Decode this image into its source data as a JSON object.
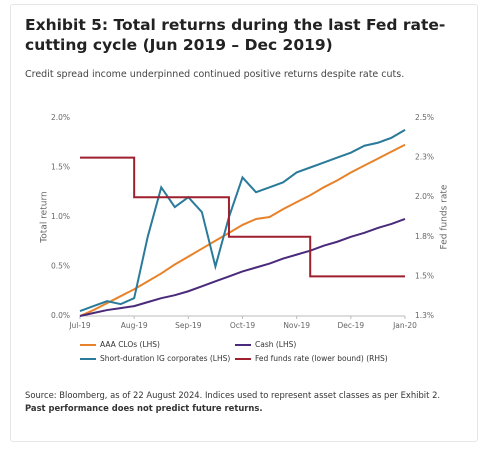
{
  "chart_data": {
    "type": "line",
    "title": "Exhibit 5: Total returns during the last Fed rate-cutting cycle (Jun 2019 – Dec 2019)",
    "subtitle": "Credit spread income underpinned continued positive returns despite rate cuts.",
    "ylabel": "Total return",
    "y2label": "Fed funds rate",
    "categories": [
      "Jul-19",
      null,
      null,
      null,
      "Aug-19",
      null,
      null,
      null,
      "Sep-19",
      null,
      null,
      null,
      "Oct-19",
      null,
      null,
      null,
      "Nov-19",
      null,
      null,
      null,
      "Dec-19",
      null,
      null,
      null,
      "Jan-20"
    ],
    "ylim": [
      0,
      2
    ],
    "yticks": [
      {
        "value": 0,
        "label": "0.0%"
      },
      {
        "value": 0.5,
        "label": "0.5%"
      },
      {
        "value": 1,
        "label": "1.0%"
      },
      {
        "value": 1.5,
        "label": "1.5%"
      },
      {
        "value": 2,
        "label": "2.0%"
      }
    ],
    "y2lim": [
      1.25,
      2.5
    ],
    "y2ticks": [
      {
        "value": 1.25,
        "label": "1.3%"
      },
      {
        "value": 1.5,
        "label": "1.5%"
      },
      {
        "value": 1.75,
        "label": "1.8%"
      },
      {
        "value": 2,
        "label": "2.0%"
      },
      {
        "value": 2.25,
        "label": "2.3%"
      },
      {
        "value": 2.5,
        "label": "2.5%"
      }
    ],
    "series": [
      {
        "name": "AAA CLOs (LHS)",
        "color": "#e8822a",
        "values": [
          0.0,
          0.06,
          0.13,
          0.2,
          0.27,
          0.35,
          0.43,
          0.52,
          0.6,
          0.68,
          0.76,
          0.84,
          0.92,
          0.98,
          1.0,
          1.08,
          1.15,
          1.22,
          1.3,
          1.37,
          1.45,
          1.52,
          1.59,
          1.66,
          1.73
        ]
      },
      {
        "name": "Cash (LHS)",
        "color": "#4a2a7a",
        "values": [
          0.0,
          0.03,
          0.06,
          0.08,
          0.1,
          0.14,
          0.18,
          0.21,
          0.25,
          0.3,
          0.35,
          0.4,
          0.45,
          0.49,
          0.53,
          0.58,
          0.62,
          0.66,
          0.71,
          0.75,
          0.8,
          0.84,
          0.89,
          0.93,
          0.98
        ]
      },
      {
        "name": "Short-duration IG corporates (LHS)",
        "color": "#2a7a9a",
        "values": [
          0.05,
          0.1,
          0.15,
          0.12,
          0.18,
          0.8,
          1.3,
          1.1,
          1.2,
          1.05,
          0.5,
          1.0,
          1.4,
          1.25,
          1.3,
          1.35,
          1.45,
          1.5,
          1.55,
          1.6,
          1.65,
          1.72,
          1.75,
          1.8,
          1.88
        ]
      },
      {
        "name": "Fed funds rate (lower bound) (RHS)",
        "color": "#9e1f2e",
        "axis": "y2",
        "step": true,
        "values": [
          2.25,
          2.25,
          2.25,
          2.25,
          2.0,
          2.0,
          2.0,
          2.0,
          2.0,
          2.0,
          2.0,
          1.75,
          1.75,
          1.75,
          1.75,
          1.75,
          1.75,
          1.5,
          1.5,
          1.5,
          1.5,
          1.5,
          1.5,
          1.5,
          1.5
        ]
      }
    ],
    "source": "Source: Bloomberg, as of 22 August 2024. Indices used to represent asset classes as per Exhibit 2.",
    "note": "Past performance does not predict future returns."
  }
}
